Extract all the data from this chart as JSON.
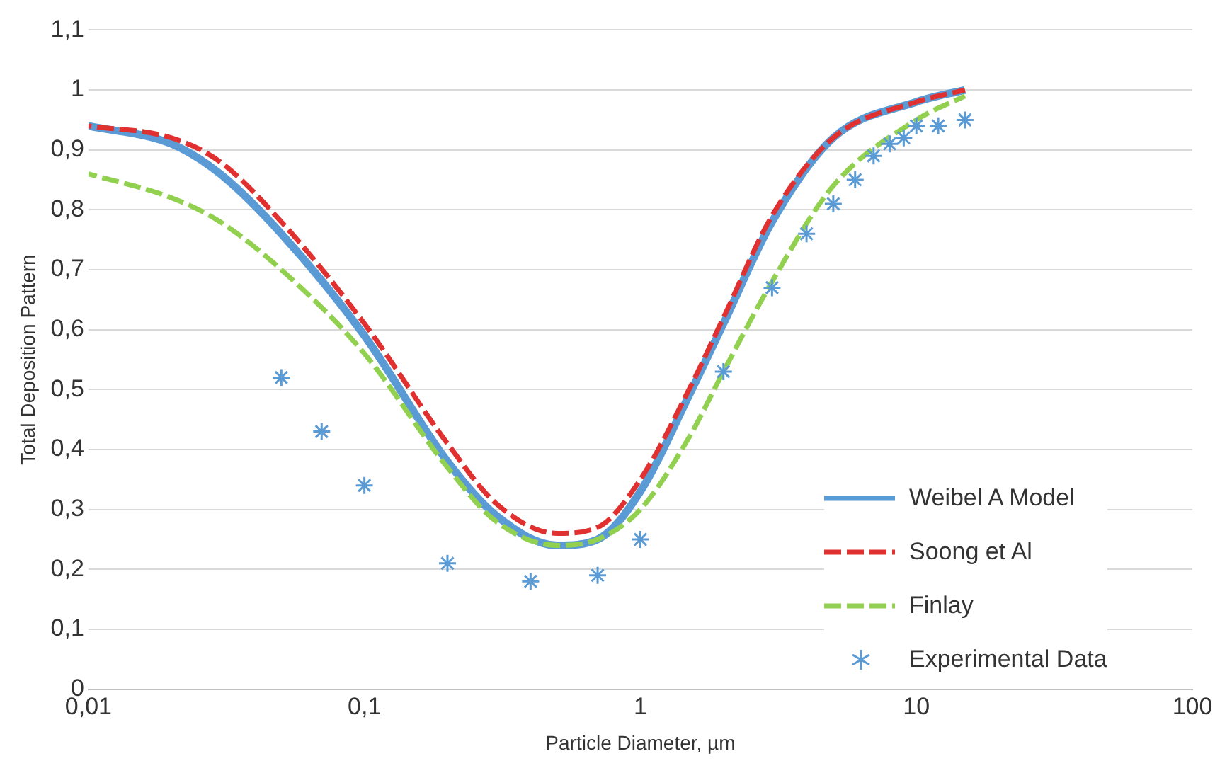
{
  "chart_data": {
    "type": "line",
    "xlabel": "Particle Diameter, µm",
    "ylabel": "Total Deposition Pattern",
    "xlim": [
      0.01,
      100
    ],
    "xticks": [
      {
        "value": 0.01,
        "label": "0,01"
      },
      {
        "value": 0.1,
        "label": "0,1"
      },
      1,
      10,
      100
    ],
    "ylim": [
      0,
      1.1
    ],
    "yticks": [
      0,
      {
        "value": 0.1,
        "label": "0,1"
      },
      {
        "value": 0.2,
        "label": "0,2"
      },
      {
        "value": 0.3,
        "label": "0,3"
      },
      {
        "value": 0.4,
        "label": "0,4"
      },
      {
        "value": 0.5,
        "label": "0,5"
      },
      {
        "value": 0.6,
        "label": "0,6"
      },
      {
        "value": 0.7,
        "label": "0,7"
      },
      {
        "value": 0.8,
        "label": "0,8"
      },
      {
        "value": 0.9,
        "label": "0,9"
      },
      1,
      {
        "value": 1.1,
        "label": "1,1"
      }
    ],
    "log": "x",
    "grid": "y",
    "legend": "bottom right",
    "series": [
      {
        "name": "Weibel A Model",
        "color": "#5b9bd5",
        "marker": "none",
        "line_style": "solid",
        "x": [
          0.01,
          0.02,
          0.03,
          0.05,
          0.1,
          0.2,
          0.3,
          0.5,
          0.7,
          1,
          1.5,
          2,
          3,
          5,
          10,
          15
        ],
        "values": [
          0.94,
          0.91,
          0.86,
          0.76,
          0.59,
          0.38,
          0.29,
          0.24,
          0.25,
          0.33,
          0.49,
          0.61,
          0.78,
          0.92,
          0.98,
          1.0
        ]
      },
      {
        "name": "Soong et Al",
        "color": "#e03030",
        "marker": "none",
        "line_style": "dashed",
        "x": [
          0.01,
          0.02,
          0.03,
          0.05,
          0.1,
          0.2,
          0.3,
          0.5,
          0.7,
          1,
          1.5,
          2,
          3,
          5,
          10,
          15
        ],
        "values": [
          0.94,
          0.92,
          0.88,
          0.78,
          0.61,
          0.41,
          0.31,
          0.26,
          0.27,
          0.35,
          0.5,
          0.62,
          0.79,
          0.92,
          0.98,
          1.0
        ]
      },
      {
        "name": "Finlay",
        "color": "#92d050",
        "marker": "none",
        "line_style": "dashed",
        "x": [
          0.01,
          0.02,
          0.03,
          0.05,
          0.1,
          0.2,
          0.3,
          0.5,
          0.7,
          1,
          1.5,
          2,
          3,
          5,
          10,
          15
        ],
        "values": [
          0.86,
          0.82,
          0.78,
          0.7,
          0.56,
          0.37,
          0.28,
          0.24,
          0.25,
          0.3,
          0.42,
          0.53,
          0.68,
          0.84,
          0.95,
          0.99
        ]
      },
      {
        "name": "Experimental Data",
        "type": "scatter",
        "color": "#5b9bd5",
        "marker": "cross",
        "x": [
          0.05,
          0.07,
          0.1,
          0.2,
          0.4,
          0.7,
          1,
          2,
          3,
          4,
          5,
          6,
          7,
          8,
          9,
          10,
          12,
          15
        ],
        "values": [
          0.52,
          0.43,
          0.34,
          0.21,
          0.18,
          0.19,
          0.25,
          0.53,
          0.67,
          0.76,
          0.81,
          0.85,
          0.89,
          0.91,
          0.92,
          0.94,
          0.94,
          0.95
        ]
      }
    ]
  }
}
